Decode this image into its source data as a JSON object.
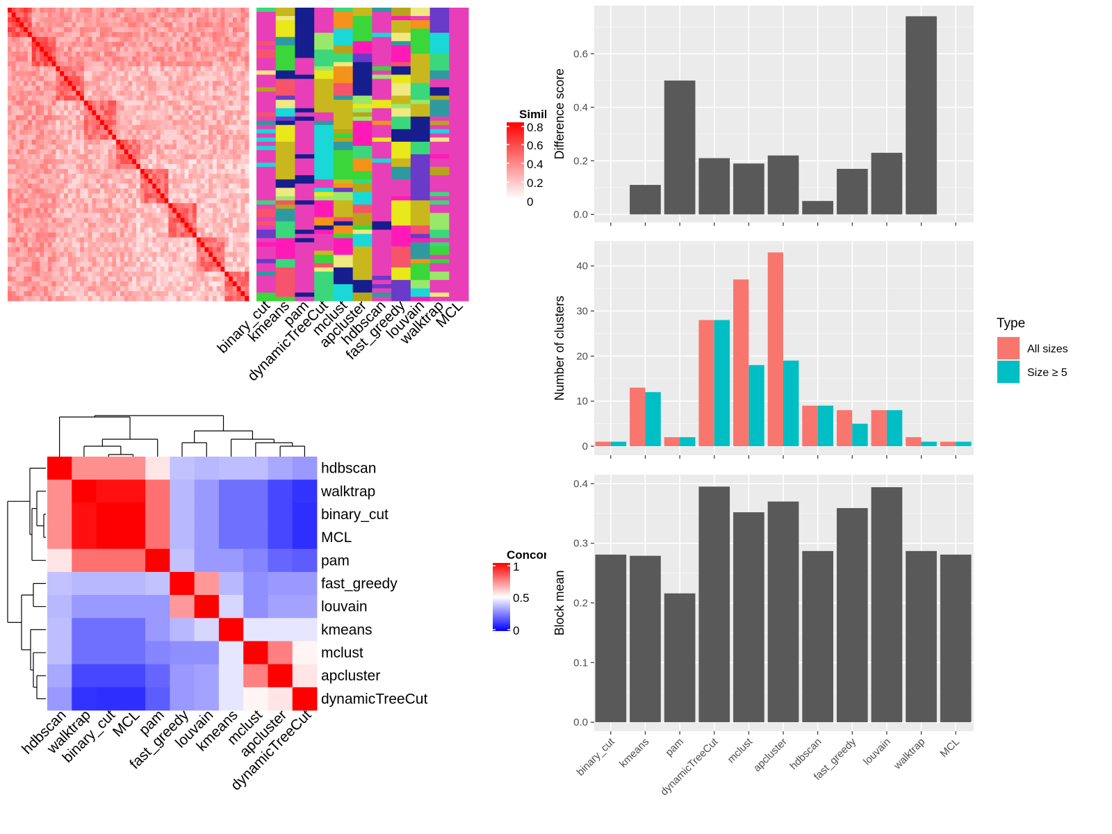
{
  "similarity_panel": {
    "legend_title": "Similarity",
    "legend_ticks": [
      "0.8",
      "0.6",
      "0.4",
      "0.2",
      "0"
    ],
    "method_labels": [
      "binary_cut",
      "kmeans",
      "pam",
      "dynamicTreeCut",
      "mclust",
      "apcluster",
      "hdbscan",
      "fast_greedy",
      "louvain",
      "walktrap",
      "MCL"
    ],
    "class_colors": [
      "#e83fb8",
      "#151e8c",
      "#f3931a",
      "#c8b81e",
      "#2e9aa0",
      "#e8e81a",
      "#3ad63a",
      "#f5546a",
      "#6a3ac8",
      "#9ae86a",
      "#1ad8d8",
      "#ff1ab8",
      "#3ad87a",
      "#b8a41a",
      "#f0e880"
    ]
  },
  "concordance_panel": {
    "legend_title": "Concordance",
    "legend_ticks": [
      "1",
      "0.5",
      "0"
    ],
    "row_labels": [
      "hdbscan",
      "walktrap",
      "binary_cut",
      "MCL",
      "pam",
      "fast_greedy",
      "louvain",
      "kmeans",
      "mclust",
      "apcluster",
      "dynamicTreeCut"
    ],
    "col_labels": [
      "hdbscan",
      "walktrap",
      "binary_cut",
      "MCL",
      "pam",
      "fast_greedy",
      "louvain",
      "kmeans",
      "mclust",
      "apcluster",
      "dynamicTreeCut"
    ]
  },
  "chart_data": [
    {
      "type": "bar",
      "title": "",
      "xlabel": "",
      "ylabel": "Difference score",
      "categories": [
        "binary_cut",
        "kmeans",
        "pam",
        "dynamicTreeCut",
        "mclust",
        "apcluster",
        "hdbscan",
        "fast_greedy",
        "louvain",
        "walktrap",
        "MCL"
      ],
      "values": [
        0.0,
        0.11,
        0.5,
        0.21,
        0.19,
        0.22,
        0.05,
        0.17,
        0.23,
        0.74,
        0.0
      ],
      "ylim": [
        -0.03,
        0.78
      ],
      "yticks": [
        0.0,
        0.2,
        0.4,
        0.6
      ],
      "ytick_labels": [
        "0.0",
        "0.2",
        "0.4",
        "0.6"
      ],
      "color": "#595959",
      "grid": true
    },
    {
      "type": "bar",
      "title": "",
      "xlabel": "",
      "ylabel": "Number of clusters",
      "categories": [
        "binary_cut",
        "kmeans",
        "pam",
        "dynamicTreeCut",
        "mclust",
        "apcluster",
        "hdbscan",
        "fast_greedy",
        "louvain",
        "walktrap",
        "MCL"
      ],
      "series": [
        {
          "name": "All sizes",
          "color": "#f8766d",
          "values": [
            1,
            13,
            2,
            28,
            37,
            43,
            9,
            8,
            8,
            2,
            1
          ]
        },
        {
          "name": "Size ≥ 5",
          "color": "#00bfc4",
          "values": [
            1,
            12,
            2,
            28,
            18,
            19,
            9,
            5,
            8,
            1,
            1
          ]
        }
      ],
      "ylim": [
        -2,
        45.5
      ],
      "yticks": [
        0,
        10,
        20,
        30,
        40
      ],
      "ytick_labels": [
        "0",
        "10",
        "20",
        "30",
        "40"
      ],
      "legend_title": "Type",
      "legend_position": "right",
      "grid": true
    },
    {
      "type": "bar",
      "title": "",
      "xlabel": "",
      "ylabel": "Block mean",
      "categories": [
        "binary_cut",
        "kmeans",
        "pam",
        "dynamicTreeCut",
        "mclust",
        "apcluster",
        "hdbscan",
        "fast_greedy",
        "louvain",
        "walktrap",
        "MCL"
      ],
      "values": [
        0.281,
        0.279,
        0.216,
        0.395,
        0.352,
        0.37,
        0.287,
        0.359,
        0.394,
        0.287,
        0.281
      ],
      "ylim": [
        -0.015,
        0.415
      ],
      "yticks": [
        0.0,
        0.1,
        0.2,
        0.3,
        0.4
      ],
      "ytick_labels": [
        "0.0",
        "0.1",
        "0.2",
        "0.3",
        "0.4"
      ],
      "color": "#595959",
      "grid": true
    }
  ]
}
